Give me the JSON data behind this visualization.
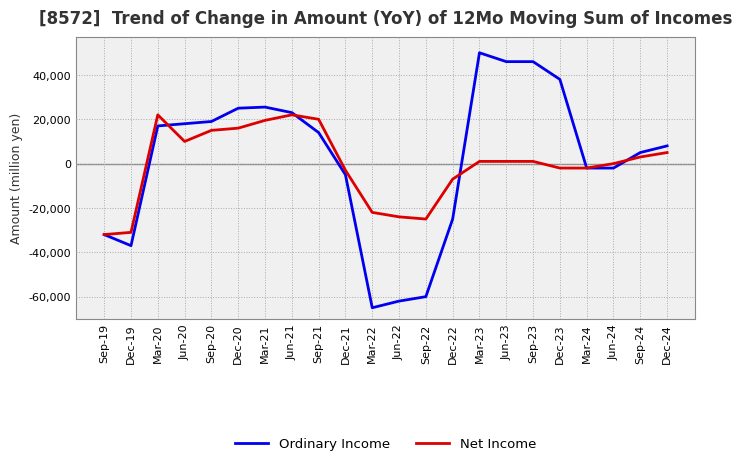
{
  "title": "[8572]  Trend of Change in Amount (YoY) of 12Mo Moving Sum of Incomes",
  "ylabel": "Amount (million yen)",
  "background_color": "#ffffff",
  "plot_bg_color": "#f0f0f0",
  "grid_color": "#aaaaaa",
  "tick_labels": [
    "Sep-19",
    "Dec-19",
    "Mar-20",
    "Jun-20",
    "Sep-20",
    "Dec-20",
    "Mar-21",
    "Jun-21",
    "Sep-21",
    "Dec-21",
    "Mar-22",
    "Jun-22",
    "Sep-22",
    "Dec-22",
    "Mar-23",
    "Jun-23",
    "Sep-23",
    "Dec-23",
    "Mar-24",
    "Jun-24",
    "Sep-24",
    "Dec-24"
  ],
  "ordinary_income": [
    -32000,
    -37000,
    17000,
    18000,
    19000,
    25000,
    25500,
    23000,
    14000,
    -5000,
    -65000,
    -62000,
    -60000,
    -25000,
    50000,
    46000,
    46000,
    38000,
    -2000,
    -2000,
    5000,
    8000
  ],
  "net_income": [
    -32000,
    -31000,
    22000,
    10000,
    15000,
    16000,
    19500,
    22000,
    20000,
    -3000,
    -22000,
    -24000,
    -25000,
    -7000,
    1000,
    1000,
    1000,
    -2000,
    -2000,
    0,
    3000,
    5000
  ],
  "ordinary_color": "#0000ee",
  "net_color": "#dd0000",
  "ylim": [
    -70000,
    57000
  ],
  "yticks": [
    -60000,
    -40000,
    -20000,
    0,
    20000,
    40000
  ],
  "line_width": 2.0,
  "title_fontsize": 12,
  "title_color": "#333333",
  "legend_fontsize": 9.5,
  "tick_fontsize": 8
}
